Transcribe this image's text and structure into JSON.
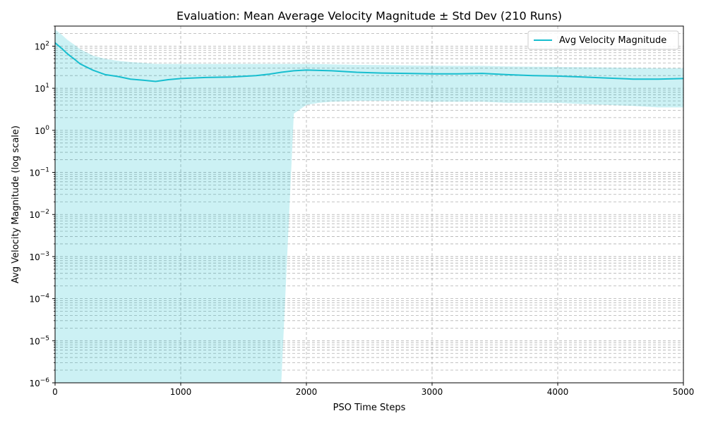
{
  "chart_data": {
    "type": "line",
    "title": "Evaluation: Mean Average Velocity Magnitude ± Std Dev (210 Runs)",
    "xlabel": "PSO Time Steps",
    "ylabel": "Avg Velocity Magnitude (log scale)",
    "xlim": [
      0,
      5000
    ],
    "ylim": [
      1e-06,
      300
    ],
    "yscale": "log",
    "grid": true,
    "legend_position": "top-right",
    "x_ticks": [
      0,
      1000,
      2000,
      3000,
      4000,
      5000
    ],
    "y_ticks": [
      {
        "exp": "2"
      },
      {
        "exp": "1"
      },
      {
        "exp": "0"
      },
      {
        "exp": "−1"
      },
      {
        "exp": "−2"
      },
      {
        "exp": "−3"
      },
      {
        "exp": "−4"
      },
      {
        "exp": "−5"
      },
      {
        "exp": "−6"
      }
    ],
    "colors": {
      "line": "#17becf",
      "band": "#17becf"
    },
    "series": [
      {
        "name": "Avg Velocity Magnitude",
        "x": [
          0,
          50,
          100,
          150,
          200,
          300,
          400,
          500,
          600,
          700,
          800,
          900,
          1000,
          1200,
          1400,
          1600,
          1700,
          1800,
          1900,
          2000,
          2100,
          2200,
          2400,
          2600,
          2800,
          3000,
          3200,
          3400,
          3600,
          3800,
          4000,
          4200,
          4400,
          4600,
          4800,
          5000
        ],
        "mean": [
          120,
          90,
          65,
          50,
          38,
          27,
          21,
          19,
          16.5,
          15.5,
          14.5,
          16,
          17,
          18,
          18.5,
          20,
          21.5,
          24,
          26,
          27,
          26.5,
          26,
          24,
          23,
          22.5,
          22,
          22,
          22.5,
          21,
          20,
          19.5,
          18.5,
          17.5,
          16.5,
          16.5,
          17
        ],
        "upper": [
          250,
          190,
          140,
          110,
          85,
          60,
          50,
          45,
          42,
          40,
          38,
          38,
          38,
          38,
          38,
          38,
          38,
          38,
          38,
          38,
          37.5,
          37,
          36,
          35.5,
          35,
          34.5,
          34,
          34,
          33,
          32.5,
          32,
          31.5,
          31,
          30.5,
          30,
          30
        ],
        "lower": [
          1e-06,
          1e-06,
          1e-06,
          1e-06,
          1e-06,
          1e-06,
          1e-06,
          1e-06,
          1e-06,
          1e-06,
          1e-06,
          1e-06,
          1e-06,
          1e-06,
          1e-06,
          1e-06,
          1e-06,
          1e-06,
          2.5,
          4,
          4.5,
          4.8,
          5,
          5,
          5,
          4.8,
          4.8,
          4.8,
          4.5,
          4.5,
          4.5,
          4.2,
          4,
          3.8,
          3.5,
          3.5
        ]
      }
    ]
  }
}
